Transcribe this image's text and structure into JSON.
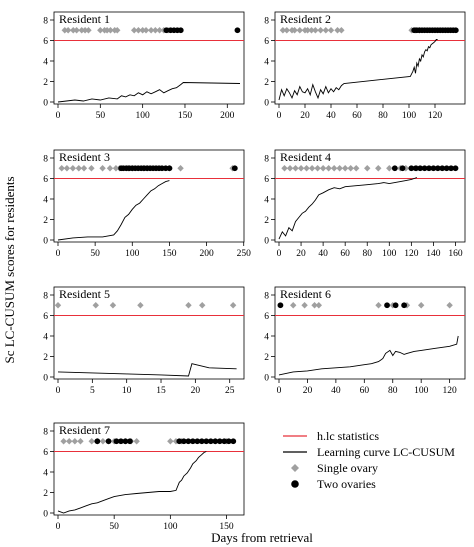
{
  "figure": {
    "ylabel": "Sc LC-CUSUM scores for residents",
    "xlabel": "Days from retrieval"
  },
  "legend": {
    "items": [
      {
        "label": "h.lc statistics",
        "kind": "line",
        "color": "#e8303a"
      },
      {
        "label": "Learning curve LC-CUSUM",
        "kind": "line",
        "color": "#000000"
      },
      {
        "label": "Single ovary",
        "kind": "diamond",
        "color": "#a0a0a0"
      },
      {
        "label": "Two ovaries",
        "kind": "dot",
        "color": "#000000"
      }
    ]
  },
  "colors": {
    "threshold": "#e8303a",
    "curve": "#000000",
    "single": "#a0a0a0",
    "two": "#000000"
  },
  "chart_data": [
    {
      "type": "line",
      "title": "Resident 1",
      "xlim": [
        0,
        215
      ],
      "ylim": [
        0,
        8
      ],
      "xticks": [
        0,
        50,
        100,
        150,
        200
      ],
      "yticks": [
        0,
        2,
        4,
        6,
        8
      ],
      "threshold": 6,
      "curve": {
        "x": [
          0,
          10,
          20,
          30,
          40,
          50,
          60,
          70,
          75,
          80,
          85,
          90,
          95,
          100,
          105,
          110,
          115,
          120,
          125,
          130,
          135,
          140,
          145,
          148,
          215
        ],
        "y": [
          0,
          0.1,
          0.2,
          0.1,
          0.3,
          0.2,
          0.4,
          0.3,
          0.6,
          0.5,
          0.7,
          0.6,
          0.9,
          0.7,
          1.0,
          0.8,
          1.0,
          1.2,
          0.9,
          1.1,
          1.3,
          1.4,
          1.7,
          1.9,
          1.8
        ]
      },
      "single_x": [
        8,
        12,
        18,
        22,
        28,
        32,
        36,
        50,
        55,
        58,
        62,
        67,
        70,
        90,
        95,
        100,
        104,
        110,
        115,
        120,
        125,
        130
      ],
      "two_x": [
        128,
        133,
        137,
        141,
        145,
        212
      ]
    },
    {
      "type": "line",
      "title": "Resident 2",
      "xlim": [
        0,
        140
      ],
      "ylim": [
        0,
        8
      ],
      "xticks": [
        0,
        20,
        40,
        60,
        80,
        100,
        120
      ],
      "yticks": [
        0,
        2,
        4,
        6,
        8
      ],
      "threshold": 6,
      "curve": {
        "x": [
          0,
          2,
          4,
          6,
          8,
          10,
          12,
          14,
          16,
          18,
          20,
          22,
          24,
          26,
          28,
          30,
          32,
          34,
          36,
          38,
          40,
          42,
          44,
          46,
          48,
          50,
          101,
          103,
          104,
          105,
          106,
          107,
          108,
          109,
          110,
          111,
          112,
          113,
          114,
          115,
          116,
          117,
          118,
          119,
          120,
          121,
          122
        ],
        "y": [
          0.2,
          1.2,
          0.6,
          1.3,
          0.9,
          0.4,
          1.1,
          0.7,
          1.5,
          1.0,
          0.9,
          1.3,
          0.7,
          1.7,
          1.0,
          0.4,
          1.2,
          0.8,
          1.5,
          0.9,
          1.3,
          1.0,
          1.4,
          1.2,
          1.6,
          1.8,
          2.5,
          3.0,
          3.4,
          2.8,
          3.8,
          3.5,
          4.2,
          4.0,
          4.6,
          4.4,
          4.9,
          5.1,
          5.0,
          5.4,
          5.3,
          5.6,
          5.7,
          5.8,
          5.9,
          6.1,
          6.1
        ]
      },
      "single_x": [
        3,
        6,
        10,
        12,
        16,
        20,
        22,
        25,
        28,
        32,
        36,
        40,
        45,
        48,
        102,
        105,
        108
      ],
      "two_x": [
        104,
        106,
        108,
        110,
        112,
        114,
        116,
        118,
        120,
        122,
        124,
        126,
        128,
        130,
        132,
        134,
        136
      ]
    },
    {
      "type": "line",
      "title": "Resident 3",
      "xlim": [
        0,
        245
      ],
      "ylim": [
        0,
        8
      ],
      "xticks": [
        0,
        50,
        100,
        150,
        200,
        250
      ],
      "yticks": [
        0,
        2,
        4,
        6,
        8
      ],
      "threshold": 6,
      "curve": {
        "x": [
          0,
          20,
          40,
          60,
          75,
          80,
          85,
          90,
          95,
          100,
          105,
          110,
          115,
          120,
          125,
          130,
          135,
          140,
          145,
          150
        ],
        "y": [
          0,
          0.2,
          0.3,
          0.3,
          0.5,
          0.9,
          1.5,
          2.2,
          2.5,
          3.0,
          3.4,
          3.6,
          4.0,
          4.4,
          4.8,
          5.0,
          5.3,
          5.5,
          5.7,
          5.8
        ]
      },
      "single_x": [
        5,
        12,
        20,
        28,
        35,
        45,
        60,
        70,
        78,
        83,
        95,
        100,
        115,
        120,
        150,
        165,
        235
      ],
      "two_x": [
        85,
        88,
        92,
        96,
        100,
        104,
        108,
        112,
        116,
        120,
        124,
        128,
        132,
        136,
        140,
        145,
        150,
        238
      ]
    },
    {
      "type": "line",
      "title": "Resident 4",
      "xlim": [
        0,
        165
      ],
      "ylim": [
        0,
        8
      ],
      "xticks": [
        0,
        20,
        40,
        60,
        80,
        100,
        120,
        140,
        160
      ],
      "yticks": [
        0,
        2,
        4,
        6,
        8
      ],
      "threshold": 6,
      "curve": {
        "x": [
          0,
          3,
          6,
          9,
          12,
          15,
          18,
          21,
          24,
          27,
          30,
          33,
          36,
          40,
          45,
          50,
          55,
          60,
          70,
          80,
          90,
          95,
          100,
          105,
          110,
          115,
          120,
          125
        ],
        "y": [
          0.1,
          0.8,
          0.4,
          1.2,
          0.9,
          1.8,
          2.2,
          2.6,
          2.8,
          3.2,
          3.5,
          3.9,
          4.4,
          4.6,
          4.9,
          5.1,
          5.0,
          5.2,
          5.3,
          5.4,
          5.5,
          5.6,
          5.5,
          5.6,
          5.7,
          5.8,
          5.9,
          6.1
        ]
      },
      "single_x": [
        5,
        10,
        15,
        20,
        25,
        30,
        35,
        40,
        45,
        50,
        55,
        60,
        65,
        70,
        80,
        90,
        100,
        110,
        115,
        125
      ],
      "two_x": [
        105,
        112,
        120,
        124,
        128,
        132,
        136,
        140,
        144,
        148,
        152,
        156,
        160
      ]
    },
    {
      "type": "line",
      "title": "Resident 5",
      "xlim": [
        0,
        26.5
      ],
      "ylim": [
        0,
        8
      ],
      "xticks": [
        0,
        5,
        10,
        15,
        20,
        25
      ],
      "yticks": [
        0,
        2,
        4,
        6,
        8
      ],
      "threshold": 6,
      "curve": {
        "x": [
          0,
          5,
          10,
          15,
          19,
          19.5,
          22,
          26
        ],
        "y": [
          0.5,
          0.4,
          0.3,
          0.2,
          0.1,
          1.3,
          0.9,
          0.8
        ]
      },
      "single_x": [
        0,
        5.5,
        8,
        12,
        19,
        21,
        25.5
      ],
      "two_x": []
    },
    {
      "type": "line",
      "title": "Resident 6",
      "xlim": [
        0,
        128
      ],
      "ylim": [
        0,
        8
      ],
      "xticks": [
        0,
        20,
        40,
        60,
        80,
        100,
        120
      ],
      "yticks": [
        0,
        2,
        4,
        6,
        8
      ],
      "threshold": 6,
      "curve": {
        "x": [
          0,
          10,
          20,
          30,
          40,
          50,
          60,
          65,
          70,
          73,
          75,
          78,
          80,
          82,
          85,
          88,
          90,
          95,
          100,
          110,
          120,
          125,
          126
        ],
        "y": [
          0.2,
          0.5,
          0.6,
          0.8,
          0.9,
          1.0,
          1.2,
          1.3,
          1.5,
          1.8,
          2.3,
          2.6,
          2.1,
          2.5,
          2.4,
          2.2,
          2.3,
          2.5,
          2.6,
          2.8,
          3.0,
          3.2,
          4.0
        ]
      },
      "single_x": [
        10,
        18,
        25,
        28,
        70,
        80,
        90,
        100,
        120
      ],
      "two_x": [
        1,
        76,
        82,
        88
      ]
    },
    {
      "type": "line",
      "title": "Resident 7",
      "xlim": [
        0,
        162
      ],
      "ylim": [
        0,
        8
      ],
      "xticks": [
        0,
        50,
        100,
        150
      ],
      "yticks": [
        0,
        2,
        4,
        6,
        8
      ],
      "threshold": 6,
      "curve": {
        "x": [
          0,
          5,
          10,
          15,
          20,
          25,
          30,
          35,
          40,
          45,
          50,
          55,
          60,
          70,
          80,
          90,
          100,
          105,
          108,
          110,
          112,
          115,
          118,
          120,
          123,
          125,
          128,
          130,
          132
        ],
        "y": [
          0.2,
          0,
          0.2,
          0.3,
          0.5,
          0.7,
          0.9,
          1.0,
          1.2,
          1.4,
          1.6,
          1.7,
          1.8,
          1.9,
          2.0,
          2.1,
          2.1,
          2.2,
          3.0,
          3.2,
          3.6,
          3.9,
          4.4,
          4.8,
          5.1,
          5.4,
          5.7,
          5.9,
          6.0
        ]
      },
      "single_x": [
        5,
        10,
        15,
        20,
        30,
        35,
        40,
        45,
        50,
        60,
        65,
        70,
        100,
        105,
        110,
        140,
        150
      ],
      "two_x": [
        35,
        45,
        52,
        56,
        60,
        64,
        108,
        112,
        116,
        120,
        124,
        128,
        132,
        136,
        140,
        144,
        148,
        152,
        156
      ]
    }
  ]
}
